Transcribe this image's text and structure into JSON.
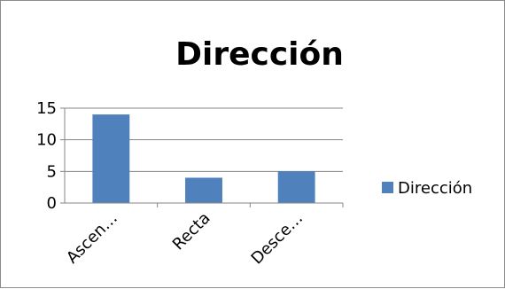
{
  "chart_data": {
    "type": "bar",
    "title": "Dirección",
    "categories": [
      "Ascen…",
      "Recta",
      "Desce…"
    ],
    "series": [
      {
        "name": "Dirección",
        "values": [
          14,
          4,
          5
        ],
        "color": "#4f81bd"
      }
    ],
    "ylim": [
      0,
      15
    ],
    "yticks": [
      0,
      5,
      10,
      15
    ],
    "grid": true,
    "legend_position": "right",
    "xlabel": "",
    "ylabel": ""
  }
}
